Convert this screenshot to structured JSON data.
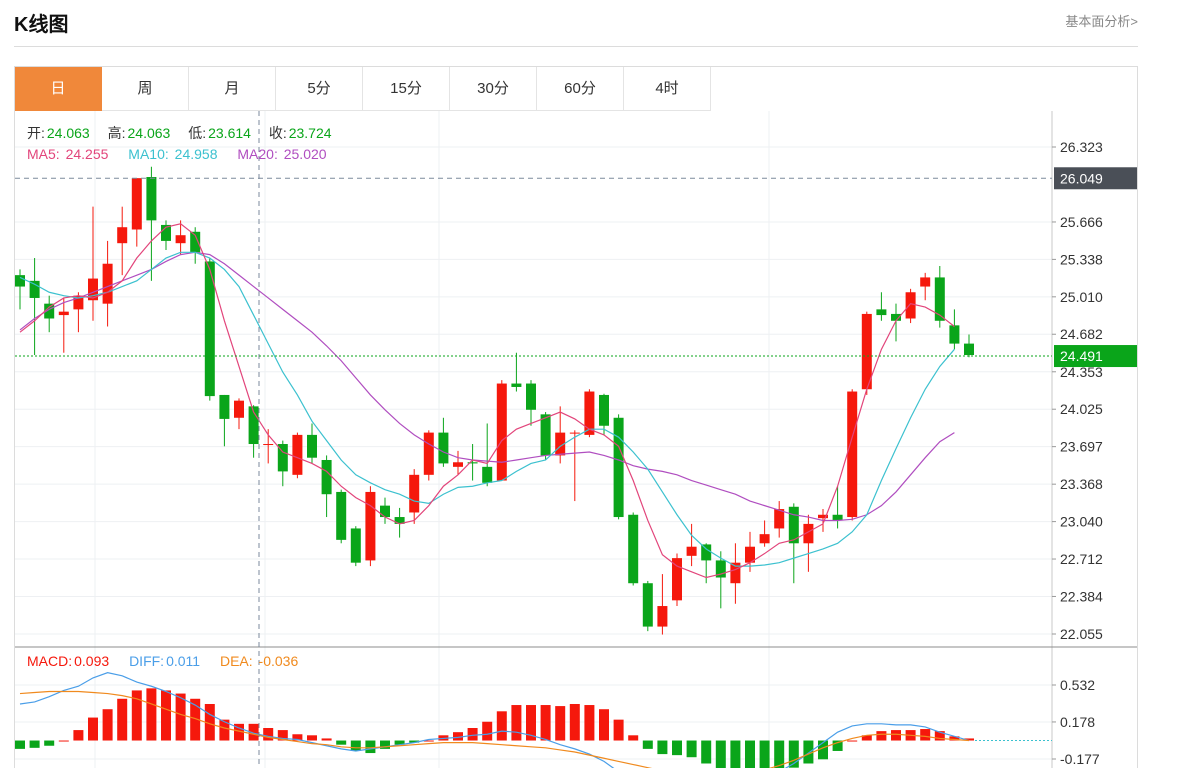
{
  "header": {
    "title": "K线图",
    "link": "基本面分析>"
  },
  "tabs": [
    {
      "label": "日",
      "active": true
    },
    {
      "label": "周",
      "active": false
    },
    {
      "label": "月",
      "active": false
    },
    {
      "label": "5分",
      "active": false
    },
    {
      "label": "15分",
      "active": false
    },
    {
      "label": "30分",
      "active": false
    },
    {
      "label": "60分",
      "active": false
    },
    {
      "label": "4时",
      "active": false
    }
  ],
  "ohlc_info": {
    "open_label": "开:",
    "open": "24.063",
    "high_label": "高:",
    "high": "24.063",
    "low_label": "低:",
    "low": "23.614",
    "close_label": "收:",
    "close": "23.724"
  },
  "ma_info": {
    "ma5_label": "MA5: ",
    "ma5": "24.255",
    "ma10_label": "MA10: ",
    "ma10": "24.958",
    "ma20_label": "MA20: ",
    "ma20": "25.020"
  },
  "macd_info": {
    "macd_label": "MACD:",
    "macd": "0.093",
    "diff_label": "DIFF:",
    "diff": "0.011",
    "dea_label": "DEA: ",
    "dea": "-0.036"
  },
  "colors": {
    "up": "#f5180c",
    "down": "#0aa51a",
    "ma5": "#e2457b",
    "ma10": "#3cc1cf",
    "ma20": "#b04ec0",
    "diff": "#4a9ee8",
    "dea": "#f08a1e",
    "last_price_bg": "#0aa51a",
    "crosshair_bg": "#4a4f57"
  },
  "chart_data": {
    "type": "candlestick",
    "price_axis": {
      "ticks": [
        26.323,
        25.666,
        25.338,
        25.01,
        24.682,
        24.353,
        24.025,
        23.697,
        23.368,
        23.04,
        22.712,
        22.384,
        22.055
      ],
      "range": [
        21.95,
        26.55
      ]
    },
    "crosshair_price": "26.049",
    "last_price": "24.491",
    "candles": [
      [
        25.2,
        25.1,
        25.25,
        24.9
      ],
      [
        25.15,
        25.0,
        25.35,
        24.5
      ],
      [
        24.95,
        24.82,
        25.02,
        24.7
      ],
      [
        24.85,
        24.88,
        25.0,
        24.52
      ],
      [
        24.9,
        25.02,
        25.05,
        24.7
      ],
      [
        24.98,
        25.17,
        25.8,
        24.8
      ],
      [
        24.95,
        25.3,
        25.5,
        24.75
      ],
      [
        25.48,
        25.62,
        25.8,
        25.2
      ],
      [
        25.6,
        26.05,
        26.05,
        25.45
      ],
      [
        26.06,
        25.68,
        26.15,
        25.15
      ],
      [
        25.64,
        25.5,
        25.68,
        25.42
      ],
      [
        25.48,
        25.55,
        25.68,
        25.38
      ],
      [
        25.58,
        25.4,
        25.62,
        25.3
      ],
      [
        25.32,
        24.14,
        25.35,
        24.1
      ],
      [
        24.15,
        23.94,
        24.15,
        23.7
      ],
      [
        23.95,
        24.1,
        24.12,
        23.85
      ],
      [
        24.05,
        23.72,
        24.06,
        23.6
      ],
      [
        23.72,
        23.72,
        23.85,
        23.55
      ],
      [
        23.72,
        23.48,
        23.75,
        23.35
      ],
      [
        23.45,
        23.8,
        23.82,
        23.42
      ],
      [
        23.8,
        23.6,
        23.9,
        23.55
      ],
      [
        23.58,
        23.28,
        23.62,
        23.08
      ],
      [
        23.3,
        22.88,
        23.32,
        22.85
      ],
      [
        22.98,
        22.68,
        23.0,
        22.65
      ],
      [
        22.7,
        23.3,
        23.35,
        22.65
      ],
      [
        23.18,
        23.08,
        23.25,
        23.02
      ],
      [
        23.08,
        23.02,
        23.16,
        22.9
      ],
      [
        23.12,
        23.45,
        23.5,
        23.02
      ],
      [
        23.45,
        23.82,
        23.84,
        23.4
      ],
      [
        23.82,
        23.55,
        23.95,
        23.52
      ],
      [
        23.52,
        23.56,
        23.66,
        23.45
      ],
      [
        23.56,
        23.55,
        23.72,
        23.4
      ],
      [
        23.52,
        23.38,
        23.9,
        23.35
      ],
      [
        23.4,
        24.25,
        24.28,
        23.4
      ],
      [
        24.25,
        24.22,
        24.52,
        24.18
      ],
      [
        24.25,
        24.02,
        24.28,
        23.88
      ],
      [
        23.98,
        23.62,
        24.0,
        23.58
      ],
      [
        23.62,
        23.82,
        24.05,
        23.55
      ],
      [
        23.82,
        23.82,
        23.84,
        23.22
      ],
      [
        23.8,
        24.18,
        24.2,
        23.78
      ],
      [
        24.15,
        23.88,
        24.16,
        23.8
      ],
      [
        23.95,
        23.08,
        23.98,
        23.06
      ],
      [
        23.1,
        22.5,
        23.12,
        22.48
      ],
      [
        22.5,
        22.12,
        22.52,
        22.08
      ],
      [
        22.12,
        22.3,
        22.58,
        22.05
      ],
      [
        22.35,
        22.72,
        22.76,
        22.3
      ],
      [
        22.74,
        22.82,
        23.02,
        22.65
      ],
      [
        22.84,
        22.7,
        22.85,
        22.5
      ],
      [
        22.7,
        22.55,
        22.78,
        22.28
      ],
      [
        22.5,
        22.68,
        22.85,
        22.32
      ],
      [
        22.68,
        22.82,
        22.95,
        22.6
      ],
      [
        22.85,
        22.93,
        23.05,
        22.82
      ],
      [
        22.98,
        23.15,
        23.22,
        22.9
      ],
      [
        23.17,
        22.85,
        23.2,
        22.5
      ],
      [
        22.85,
        23.02,
        23.1,
        22.6
      ],
      [
        23.07,
        23.1,
        23.15,
        22.95
      ],
      [
        23.1,
        23.05,
        23.35,
        22.98
      ],
      [
        23.08,
        24.18,
        24.2,
        23.05
      ],
      [
        24.2,
        24.86,
        24.88,
        24.15
      ],
      [
        24.9,
        24.85,
        25.05,
        24.8
      ],
      [
        24.86,
        24.8,
        24.95,
        24.62
      ],
      [
        24.82,
        25.05,
        25.08,
        24.78
      ],
      [
        25.1,
        25.18,
        25.22,
        24.98
      ],
      [
        25.18,
        24.8,
        25.28,
        24.74
      ],
      [
        24.76,
        24.6,
        24.9,
        24.55
      ],
      [
        24.6,
        24.5,
        24.68,
        24.48
      ]
    ],
    "ma5": [
      24.7,
      24.8,
      24.92,
      25.0,
      25.02,
      25.0,
      25.05,
      25.15,
      25.35,
      25.5,
      25.62,
      25.65,
      25.55,
      25.25,
      24.8,
      24.4,
      24.0,
      23.8,
      23.65,
      23.6,
      23.55,
      23.48,
      23.35,
      23.25,
      23.18,
      23.08,
      23.02,
      23.05,
      23.18,
      23.35,
      23.45,
      23.58,
      23.55,
      23.75,
      23.85,
      23.9,
      23.95,
      24.0,
      23.94,
      23.85,
      23.8,
      23.7,
      23.4,
      23.05,
      22.75,
      22.65,
      22.6,
      22.55,
      22.58,
      22.62,
      22.68,
      22.76,
      22.85,
      22.88,
      22.95,
      23.02,
      23.35,
      23.78,
      24.2,
      24.55,
      24.8,
      24.95,
      24.92,
      24.85,
      24.75
    ],
    "ma10": [
      25.18,
      25.12,
      25.05,
      25.02,
      25.0,
      25.02,
      25.05,
      25.1,
      25.15,
      25.25,
      25.35,
      25.4,
      25.4,
      25.35,
      25.25,
      25.1,
      24.85,
      24.6,
      24.35,
      24.15,
      23.92,
      23.75,
      23.58,
      23.45,
      23.38,
      23.32,
      23.28,
      23.22,
      23.2,
      23.28,
      23.34,
      23.35,
      23.38,
      23.4,
      23.48,
      23.55,
      23.58,
      23.7,
      23.78,
      23.85,
      23.85,
      23.78,
      23.65,
      23.5,
      23.3,
      23.1,
      22.92,
      22.8,
      22.72,
      22.65,
      22.65,
      22.66,
      22.68,
      22.72,
      22.76,
      22.8,
      22.85,
      22.95,
      23.1,
      23.4,
      23.68,
      23.95,
      24.2,
      24.4,
      24.55
    ],
    "ma20": [
      24.72,
      24.82,
      24.9,
      24.96,
      25.0,
      25.05,
      25.1,
      25.15,
      25.2,
      25.25,
      25.32,
      25.38,
      25.4,
      25.38,
      25.3,
      25.2,
      25.1,
      25.0,
      24.9,
      24.8,
      24.7,
      24.58,
      24.45,
      24.3,
      24.15,
      24.02,
      23.9,
      23.8,
      23.72,
      23.65,
      23.6,
      23.58,
      23.57,
      23.56,
      23.58,
      23.6,
      23.62,
      23.63,
      23.64,
      23.65,
      23.62,
      23.58,
      23.53,
      23.5,
      23.48,
      23.45,
      23.4,
      23.36,
      23.32,
      23.28,
      23.22,
      23.18,
      23.14,
      23.1,
      23.08,
      23.05,
      23.05,
      23.06,
      23.1,
      23.18,
      23.3,
      23.45,
      23.6,
      23.74,
      23.82
    ],
    "macd_axis": {
      "ticks": [
        0.532,
        0.178,
        -0.177
      ],
      "range": [
        -0.3,
        0.74
      ]
    },
    "macd": [
      -0.08,
      -0.07,
      -0.05,
      0.0,
      0.1,
      0.22,
      0.3,
      0.4,
      0.48,
      0.5,
      0.48,
      0.45,
      0.4,
      0.35,
      0.2,
      0.16,
      0.16,
      0.12,
      0.1,
      0.06,
      0.05,
      0.02,
      -0.04,
      -0.1,
      -0.12,
      -0.08,
      -0.04,
      -0.02,
      0.0,
      0.05,
      0.08,
      0.12,
      0.18,
      0.28,
      0.34,
      0.34,
      0.34,
      0.33,
      0.35,
      0.34,
      0.3,
      0.2,
      0.05,
      -0.08,
      -0.13,
      -0.14,
      -0.16,
      -0.22,
      -0.28,
      -0.3,
      -0.31,
      -0.3,
      -0.28,
      -0.26,
      -0.22,
      -0.18,
      -0.1,
      0.0,
      0.05,
      0.09,
      0.1,
      0.1,
      0.11,
      0.09,
      0.04,
      0.02
    ],
    "diff": [
      0.35,
      0.37,
      0.42,
      0.48,
      0.52,
      0.6,
      0.65,
      0.62,
      0.56,
      0.52,
      0.47,
      0.41,
      0.34,
      0.25,
      0.18,
      0.12,
      0.07,
      0.04,
      0.02,
      0.01,
      -0.02,
      -0.05,
      -0.08,
      -0.1,
      -0.08,
      -0.06,
      -0.04,
      -0.02,
      0.01,
      0.02,
      0.03,
      0.05,
      0.06,
      0.09,
      0.08,
      0.05,
      0.01,
      -0.04,
      -0.08,
      -0.13,
      -0.2,
      -0.3,
      -0.38,
      -0.45,
      -0.48,
      -0.5,
      -0.51,
      -0.5,
      -0.48,
      -0.45,
      -0.4,
      -0.35,
      -0.3,
      -0.22,
      -0.12,
      -0.02,
      0.08,
      0.14,
      0.16,
      0.16,
      0.15,
      0.15,
      0.13,
      0.08,
      0.04,
      0.0
    ],
    "dea": [
      0.45,
      0.46,
      0.47,
      0.47,
      0.47,
      0.46,
      0.45,
      0.43,
      0.4,
      0.35,
      0.3,
      0.25,
      0.21,
      0.16,
      0.12,
      0.09,
      0.06,
      0.03,
      0.01,
      -0.01,
      -0.03,
      -0.04,
      -0.06,
      -0.07,
      -0.07,
      -0.06,
      -0.05,
      -0.04,
      -0.03,
      -0.02,
      -0.02,
      -0.02,
      -0.03,
      -0.04,
      -0.05,
      -0.06,
      -0.07,
      -0.09,
      -0.11,
      -0.14,
      -0.17,
      -0.2,
      -0.23,
      -0.26,
      -0.29,
      -0.31,
      -0.33,
      -0.34,
      -0.34,
      -0.33,
      -0.31,
      -0.28,
      -0.24,
      -0.19,
      -0.13,
      -0.07,
      -0.02,
      0.02,
      0.05,
      0.06,
      0.06,
      0.05,
      0.04,
      0.02,
      0.01,
      0.0
    ]
  }
}
